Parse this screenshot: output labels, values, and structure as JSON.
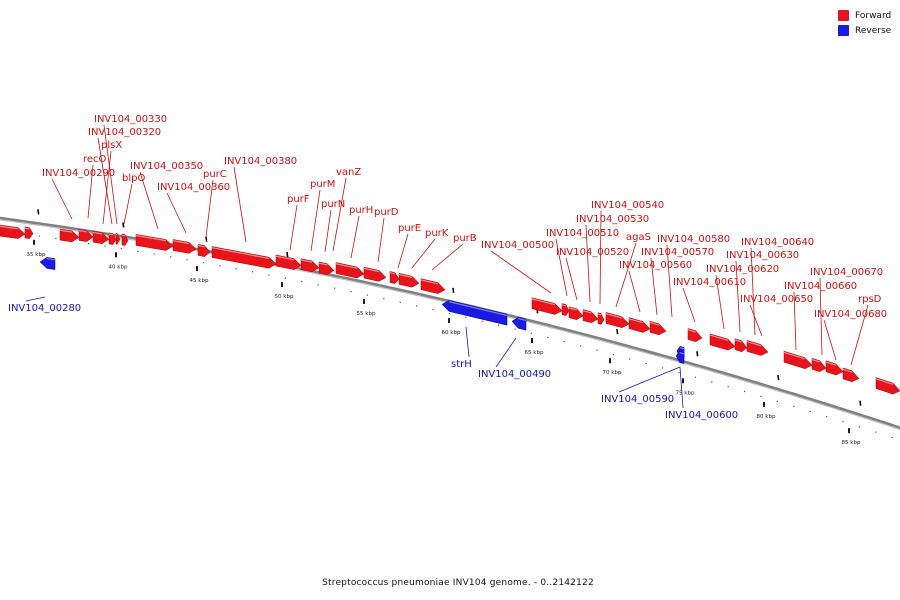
{
  "legend": {
    "forward_label": "Forward",
    "reverse_label": "Reverse",
    "forward_color": "#e8141c",
    "reverse_color": "#1a1ae0"
  },
  "caption": "Streptococcus pneumoniae INV104 genome. - 0..2142122",
  "ticks": [
    "35 kbp",
    "40 kbp",
    "45 kbp",
    "50 kbp",
    "55 kbp",
    "60 kbp",
    "65 kbp",
    "70 kbp",
    "75 kbp",
    "80 kbp",
    "85 kbp"
  ],
  "genes": [
    {
      "name": "INV104_00280",
      "strand": "reverse"
    },
    {
      "name": "INV104_00290",
      "strand": "forward"
    },
    {
      "name": "recO",
      "strand": "forward"
    },
    {
      "name": "plsX",
      "strand": "forward"
    },
    {
      "name": "INV104_00320",
      "strand": "forward"
    },
    {
      "name": "INV104_00330",
      "strand": "forward"
    },
    {
      "name": "blpO",
      "strand": "forward"
    },
    {
      "name": "INV104_00350",
      "strand": "forward"
    },
    {
      "name": "INV104_00360",
      "strand": "forward"
    },
    {
      "name": "purC",
      "strand": "forward"
    },
    {
      "name": "INV104_00380",
      "strand": "forward"
    },
    {
      "name": "purF",
      "strand": "forward"
    },
    {
      "name": "purM",
      "strand": "forward"
    },
    {
      "name": "purN",
      "strand": "forward"
    },
    {
      "name": "vanZ",
      "strand": "forward"
    },
    {
      "name": "purH",
      "strand": "forward"
    },
    {
      "name": "purD",
      "strand": "forward"
    },
    {
      "name": "purE",
      "strand": "forward"
    },
    {
      "name": "purK",
      "strand": "forward"
    },
    {
      "name": "purB",
      "strand": "forward"
    },
    {
      "name": "strH",
      "strand": "reverse"
    },
    {
      "name": "INV104_00490",
      "strand": "reverse"
    },
    {
      "name": "INV104_00500",
      "strand": "forward"
    },
    {
      "name": "INV104_00510",
      "strand": "forward"
    },
    {
      "name": "INV104_00520",
      "strand": "forward"
    },
    {
      "name": "INV104_00530",
      "strand": "forward"
    },
    {
      "name": "INV104_00540",
      "strand": "forward"
    },
    {
      "name": "agaS",
      "strand": "forward"
    },
    {
      "name": "INV104_00560",
      "strand": "forward"
    },
    {
      "name": "INV104_00570",
      "strand": "forward"
    },
    {
      "name": "INV104_00580",
      "strand": "forward"
    },
    {
      "name": "INV104_00590",
      "strand": "reverse"
    },
    {
      "name": "INV104_00600",
      "strand": "reverse"
    },
    {
      "name": "INV104_00610",
      "strand": "forward"
    },
    {
      "name": "INV104_00620",
      "strand": "forward"
    },
    {
      "name": "INV104_00630",
      "strand": "forward"
    },
    {
      "name": "INV104_00640",
      "strand": "forward"
    },
    {
      "name": "INV104_00650",
      "strand": "forward"
    },
    {
      "name": "INV104_00660",
      "strand": "forward"
    },
    {
      "name": "INV104_00670",
      "strand": "forward"
    },
    {
      "name": "INV104_00680",
      "strand": "forward"
    },
    {
      "name": "rpsD",
      "strand": "forward"
    }
  ]
}
